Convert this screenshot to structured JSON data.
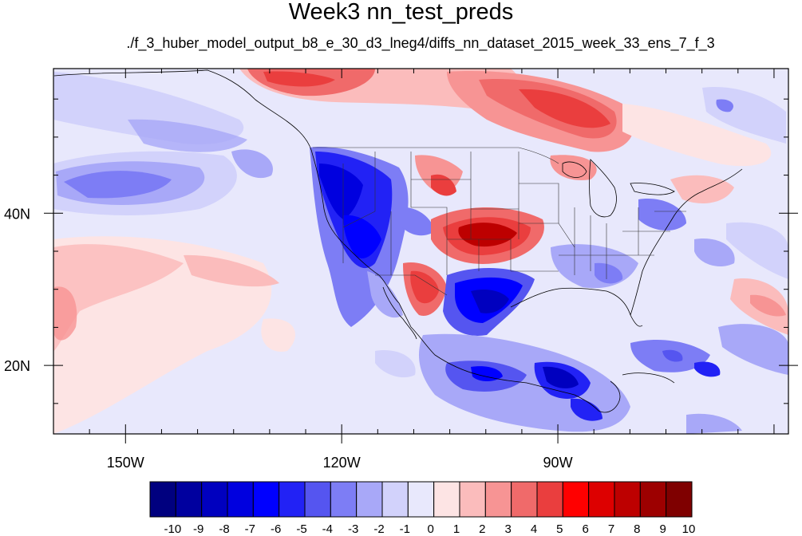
{
  "title": "Week3 nn_test_preds",
  "subtitle": "./f_3_huber_model_output_b8_e_30_d3_lneg4/diffs_nn_dataset_2015_week_33_ens_7_f_3",
  "map": {
    "lon_range": [
      -160,
      -58
    ],
    "lat_range": [
      11,
      59
    ],
    "x_ticks": [
      {
        "lon": -150,
        "label": "150W"
      },
      {
        "lon": -120,
        "label": "120W"
      },
      {
        "lon": -90,
        "label": "90W"
      }
    ],
    "y_ticks": [
      {
        "lat": 40,
        "label": "40N"
      },
      {
        "lat": 20,
        "label": "20N"
      }
    ]
  },
  "colorbar": {
    "labels": [
      "-10",
      "-9",
      "-8",
      "-7",
      "-6",
      "-5",
      "-4",
      "-3",
      "-2",
      "-1",
      "0",
      "1",
      "2",
      "3",
      "4",
      "5",
      "6",
      "7",
      "8",
      "9",
      "10"
    ],
    "colors": [
      "#00007f",
      "#00009f",
      "#0000bf",
      "#0000df",
      "#0000ff",
      "#2222f5",
      "#5555f0",
      "#7d7df5",
      "#a8a8f8",
      "#d2d2fb",
      "#e8e8fc",
      "#fde4e4",
      "#fbbcbc",
      "#f79494",
      "#f06a6a",
      "#ea3e3e",
      "#ff0000",
      "#dd0000",
      "#bd0000",
      "#9d0000",
      "#7f0000"
    ]
  }
}
